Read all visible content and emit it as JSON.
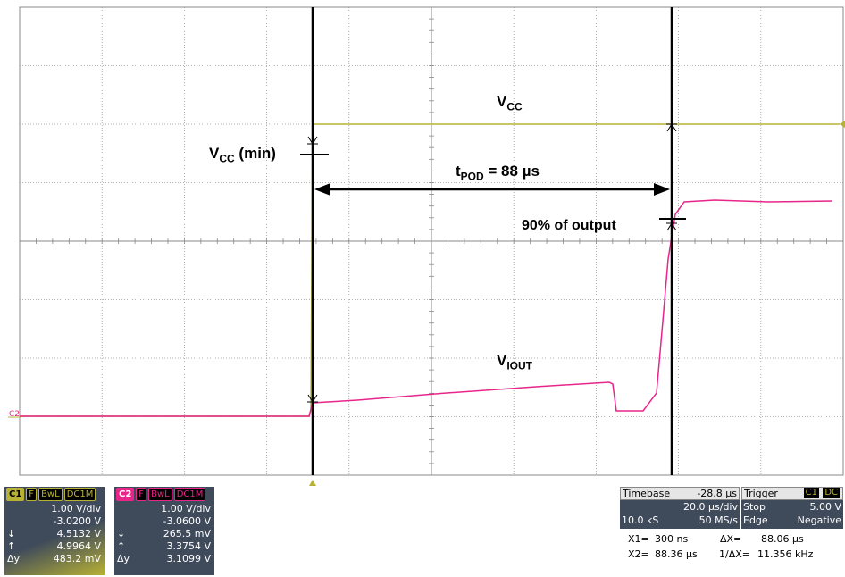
{
  "labels": {
    "vcc": "V",
    "vcc_sub": "CC",
    "vcc_min": "V",
    "vcc_min_sub": "CC",
    "vcc_min_suffix": " (min)",
    "tpod": "t",
    "tpod_sub": "POD",
    "tpod_suffix": " = 88 µs",
    "ninety": "90% of output",
    "viout": "V",
    "viout_sub": "IOUT",
    "ch2_marker": "C2"
  },
  "colors": {
    "ch1": "#b8b234",
    "ch2": "#e8258a",
    "grid": "#888888",
    "panel": "#3f4a5b"
  },
  "ch1": {
    "name": "C1",
    "tags": [
      "F",
      "BwL",
      "DC1M"
    ],
    "vdiv": "1.00 V/div",
    "offset": "-3.0200 V",
    "down_label": "↓",
    "down_value": "4.5132 V",
    "up_label": "↑",
    "up_value": "4.9964 V",
    "dy_label": "Δy",
    "dy_value": "483.2 mV"
  },
  "ch2": {
    "name": "C2",
    "tags": [
      "F",
      "BwL",
      "DC1M"
    ],
    "vdiv": "1.00 V/div",
    "offset": "-3.0600 V",
    "down_label": "↓",
    "down_value": "265.5 mV",
    "up_label": "↑",
    "up_value": "3.3754 V",
    "dy_label": "Δy",
    "dy_value": "3.1099 V"
  },
  "timebase": {
    "label": "Timebase",
    "value": "-28.8 µs",
    "per_div": "20.0 µs/div",
    "samples": "10.0 kS",
    "rate": "50 MS/s"
  },
  "trigger": {
    "label": "Trigger",
    "source": "C1",
    "coupling": "DC",
    "mode": "Stop",
    "level": "5.00 V",
    "type": "Edge",
    "slope": "Negative"
  },
  "measurements": {
    "x1_label": "X1=",
    "x1_value": "300 ns",
    "dx_label": "ΔX=",
    "dx_value": "88.06 µs",
    "x2_label": "X2=",
    "x2_value": "88.36 µs",
    "inv_dx_label": "1/ΔX=",
    "inv_dx_value": "11.356 kHz"
  }
}
